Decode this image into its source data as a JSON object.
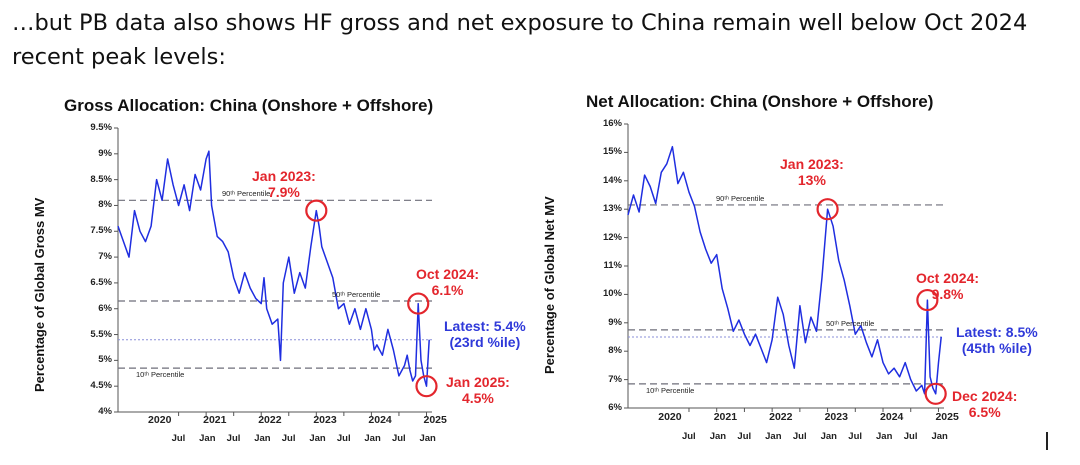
{
  "headline": "…but PB data also shows HF gross and net exposure to China remain well below Oct 2024 recent peak levels:",
  "colors": {
    "series": "#1f2ee0",
    "annotation_red": "#e3262d",
    "annotation_blue": "#2f39d9",
    "dash": "#6e6e7a"
  },
  "chart_data": [
    {
      "type": "line",
      "title": "Gross Allocation: China (Onshore + Offshore)",
      "ylabel": "Percentage of Global Gross MV",
      "xlabel": "",
      "ylim": [
        4,
        9.5
      ],
      "xlim": [
        2019.4,
        2025.1
      ],
      "yticks": [
        4,
        4.5,
        5,
        5.5,
        6,
        6.5,
        7,
        7.5,
        8,
        8.5,
        9,
        9.5
      ],
      "ytick_labels": [
        "4%",
        "4.5%",
        "5%",
        "5.5%",
        "6%",
        "6.5%",
        "7%",
        "7.5%",
        "8%",
        "8.5%",
        "9%",
        "9.5%"
      ],
      "year_labels": [
        "2020",
        "2021",
        "2022",
        "2023",
        "2024",
        "2025"
      ],
      "month_labels": [
        "Jul",
        "Jan",
        "Jul",
        "Jan",
        "Jul",
        "Jan",
        "Jul",
        "Jan",
        "Jul",
        "Jan"
      ],
      "series": [
        {
          "name": "Gross Allocation",
          "x": [
            2019.4,
            2019.5,
            2019.6,
            2019.7,
            2019.8,
            2019.9,
            2020.0,
            2020.1,
            2020.2,
            2020.3,
            2020.4,
            2020.5,
            2020.6,
            2020.7,
            2020.8,
            2020.9,
            2021.0,
            2021.05,
            2021.1,
            2021.2,
            2021.3,
            2021.4,
            2021.5,
            2021.6,
            2021.7,
            2021.8,
            2021.9,
            2022.0,
            2022.05,
            2022.1,
            2022.2,
            2022.3,
            2022.35,
            2022.4,
            2022.5,
            2022.6,
            2022.7,
            2022.8,
            2022.9,
            2023.0,
            2023.05,
            2023.1,
            2023.2,
            2023.3,
            2023.4,
            2023.5,
            2023.6,
            2023.7,
            2023.8,
            2023.9,
            2024.0,
            2024.05,
            2024.1,
            2024.2,
            2024.3,
            2024.4,
            2024.5,
            2024.6,
            2024.65,
            2024.7,
            2024.75,
            2024.8,
            2024.85,
            2024.9,
            2024.95,
            2025.0,
            2025.05
          ],
          "y": [
            7.6,
            7.3,
            7.0,
            7.9,
            7.5,
            7.3,
            7.6,
            8.5,
            8.1,
            8.9,
            8.4,
            8.0,
            8.4,
            7.9,
            8.6,
            8.3,
            8.9,
            9.05,
            8.0,
            7.4,
            7.3,
            7.1,
            6.6,
            6.3,
            6.7,
            6.4,
            6.2,
            6.1,
            6.6,
            6.0,
            5.7,
            5.8,
            5.0,
            6.5,
            7.0,
            6.3,
            6.7,
            6.4,
            7.2,
            7.9,
            7.6,
            7.2,
            6.9,
            6.6,
            6.0,
            6.1,
            5.7,
            6.0,
            5.6,
            6.0,
            5.6,
            5.2,
            5.3,
            5.1,
            5.6,
            5.2,
            4.7,
            4.9,
            5.1,
            4.8,
            4.6,
            4.7,
            6.1,
            5.0,
            4.7,
            4.5,
            5.4
          ]
        }
      ],
      "reference_lines": [
        {
          "label": "90ᵗʰ Percentile",
          "value": 8.1
        },
        {
          "label": "50ᵗʰ Percentile",
          "value": 6.15
        },
        {
          "label": "10ᵗʰ Percentile",
          "value": 4.85
        },
        {
          "label": "Latest",
          "value": 5.4,
          "style": "dotted"
        }
      ],
      "annotations": [
        {
          "line1": "Jan 2023:",
          "line2": "7.9%",
          "color": "red",
          "x": 2023.0,
          "y": 7.9
        },
        {
          "line1": "Oct 2024:",
          "line2": "6.1%",
          "color": "red",
          "x": 2024.85,
          "y": 6.1
        },
        {
          "line1": "Latest: 5.4%",
          "line2": "(23rd %ile)",
          "color": "blue"
        },
        {
          "line1": "Jan 2025:",
          "line2": "4.5%",
          "color": "red",
          "x": 2025.0,
          "y": 4.5
        }
      ]
    },
    {
      "type": "line",
      "title": "Net Allocation: China (Onshore + Offshore)",
      "ylabel": "Percentage of Global Net MV",
      "xlabel": "",
      "ylim": [
        6,
        16
      ],
      "xlim": [
        2019.4,
        2025.1
      ],
      "yticks": [
        6,
        7,
        8,
        9,
        10,
        11,
        12,
        13,
        14,
        15,
        16
      ],
      "ytick_labels": [
        "6%",
        "7%",
        "8%",
        "9%",
        "10%",
        "11%",
        "12%",
        "13%",
        "14%",
        "15%",
        "16%"
      ],
      "year_labels": [
        "2020",
        "2021",
        "2022",
        "2023",
        "2024",
        "2025"
      ],
      "month_labels": [
        "Jul",
        "Jan",
        "Jul",
        "Jan",
        "Jul",
        "Jan",
        "Jul",
        "Jan",
        "Jul",
        "Jan"
      ],
      "series": [
        {
          "name": "Net Allocation",
          "x": [
            2019.4,
            2019.5,
            2019.6,
            2019.7,
            2019.8,
            2019.9,
            2020.0,
            2020.1,
            2020.2,
            2020.3,
            2020.4,
            2020.5,
            2020.6,
            2020.7,
            2020.8,
            2020.9,
            2021.0,
            2021.1,
            2021.2,
            2021.3,
            2021.4,
            2021.5,
            2021.6,
            2021.7,
            2021.8,
            2021.9,
            2022.0,
            2022.1,
            2022.2,
            2022.3,
            2022.4,
            2022.5,
            2022.6,
            2022.7,
            2022.8,
            2022.9,
            2023.0,
            2023.1,
            2023.2,
            2023.3,
            2023.4,
            2023.5,
            2023.6,
            2023.7,
            2023.8,
            2023.9,
            2024.0,
            2024.1,
            2024.2,
            2024.3,
            2024.4,
            2024.5,
            2024.6,
            2024.7,
            2024.75,
            2024.8,
            2024.85,
            2024.9,
            2024.95,
            2025.0,
            2025.05
          ],
          "y": [
            12.8,
            13.5,
            12.9,
            14.2,
            13.8,
            13.2,
            14.3,
            14.6,
            15.2,
            13.9,
            14.3,
            13.6,
            13.1,
            12.2,
            11.6,
            11.1,
            11.4,
            10.2,
            9.5,
            8.7,
            9.1,
            8.6,
            8.2,
            8.6,
            8.1,
            7.6,
            8.4,
            9.9,
            9.3,
            8.2,
            7.4,
            9.6,
            8.3,
            9.2,
            8.7,
            10.6,
            13.0,
            12.4,
            11.2,
            10.5,
            9.6,
            8.6,
            8.9,
            8.3,
            7.8,
            8.4,
            7.6,
            7.2,
            7.4,
            7.1,
            7.6,
            7.0,
            6.6,
            6.8,
            6.5,
            9.8,
            7.1,
            6.7,
            6.5,
            7.6,
            8.5
          ]
        }
      ],
      "reference_lines": [
        {
          "label": "90ᵗʰ Percentile",
          "value": 13.15
        },
        {
          "label": "50ᵗʰ Percentile",
          "value": 8.75
        },
        {
          "label": "10ᵗʰ Percentile",
          "value": 6.85
        },
        {
          "label": "Latest",
          "value": 8.5,
          "style": "dotted"
        }
      ],
      "annotations": [
        {
          "line1": "Jan 2023:",
          "line2": "13%",
          "color": "red",
          "x": 2023.0,
          "y": 13.0
        },
        {
          "line1": "Oct 2024:",
          "line2": "9.8%",
          "color": "red",
          "x": 2024.8,
          "y": 9.8
        },
        {
          "line1": "Latest: 8.5%",
          "line2": "(45th %ile)",
          "color": "blue"
        },
        {
          "line1": "Dec 2024:",
          "line2": "6.5%",
          "color": "red",
          "x": 2024.95,
          "y": 6.5
        }
      ]
    }
  ]
}
